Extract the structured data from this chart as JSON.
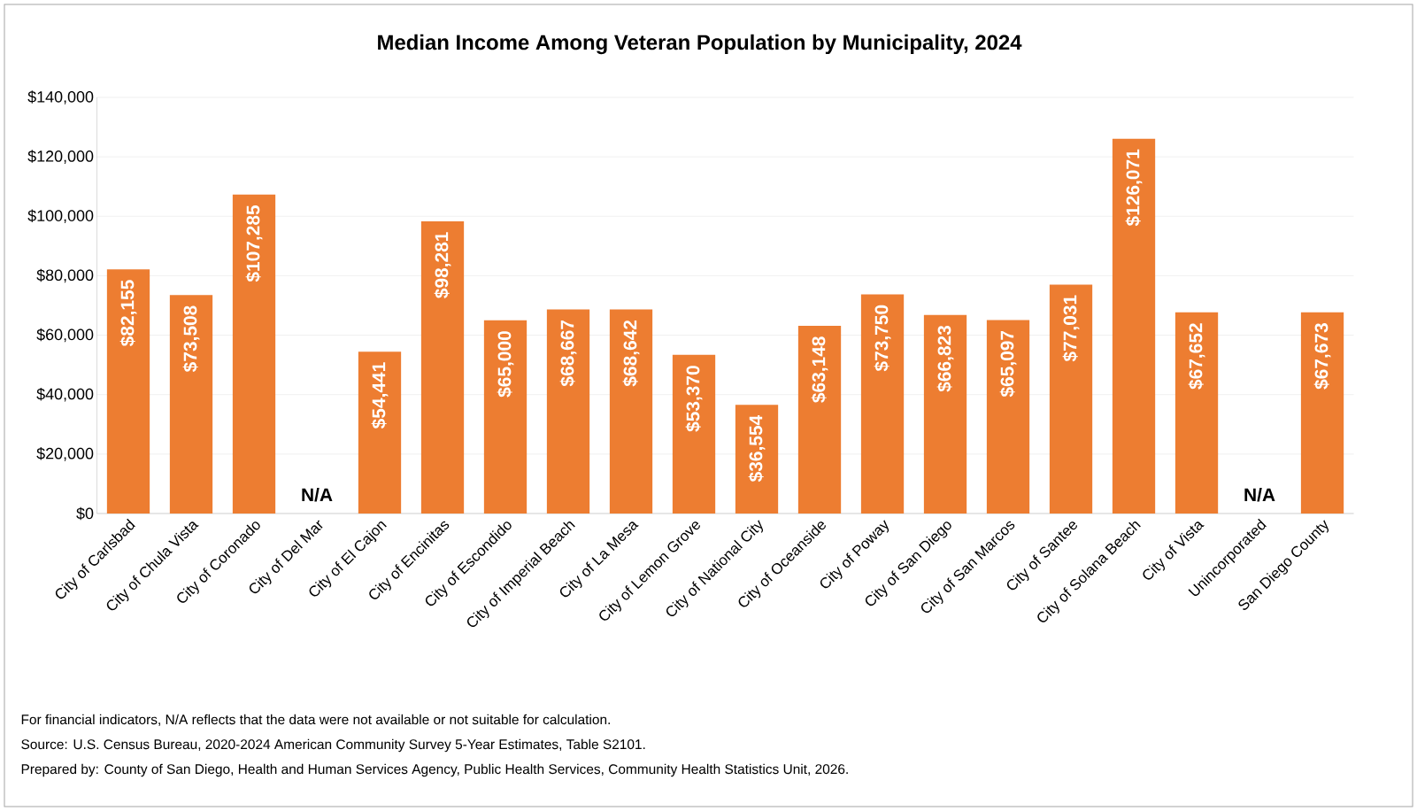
{
  "chart_data": {
    "type": "bar",
    "title": "Median Income Among Veteran Population by Municipality, 2024",
    "categories": [
      "City of Carlsbad",
      "City of Chula Vista",
      "City of Coronado",
      "City of Del Mar",
      "City of El Cajon",
      "City of Encinitas",
      "City of Escondido",
      "City of Imperial Beach",
      "City of La Mesa",
      "City of Lemon Grove",
      "City of National City",
      "City of Oceanside",
      "City of Poway",
      "City of San Diego",
      "City of San Marcos",
      "City of Santee",
      "City of Solana Beach",
      "City of Vista",
      "Unincorporated",
      "San Diego County"
    ],
    "values": [
      82155,
      73508,
      107285,
      null,
      54441,
      98281,
      65000,
      68667,
      68642,
      53370,
      36554,
      63148,
      73750,
      66823,
      65097,
      77031,
      126071,
      67652,
      null,
      67673
    ],
    "value_labels": [
      "$82,155",
      "$73,508",
      "$107,285",
      "N/A",
      "$54,441",
      "$98,281",
      "$65,000",
      "$68,667",
      "$68,642",
      "$53,370",
      "$36,554",
      "$63,148",
      "$73,750",
      "$66,823",
      "$65,097",
      "$77,031",
      "$126,071",
      "$67,652",
      "N/A",
      "$67,673"
    ],
    "color": "#ed7d31",
    "ylim": [
      0,
      140000
    ],
    "yticks": [
      {
        "value": 0,
        "label": "$0"
      },
      {
        "value": 20000,
        "label": "$20,000"
      },
      {
        "value": 40000,
        "label": "$40,000"
      },
      {
        "value": 60000,
        "label": "$60,000"
      },
      {
        "value": 80000,
        "label": "$80,000"
      },
      {
        "value": 100000,
        "label": "$100,000"
      },
      {
        "value": 120000,
        "label": "$120,000"
      },
      {
        "value": 140000,
        "label": "$140,000"
      }
    ],
    "grid": "y",
    "annotations": [
      "For financial indicators, N/A reflects that the data were not available or not suitable for calculation.",
      "Source: U.S. Census Bureau, 2020-2024 American Community Survey 5-Year Estimates, Table S2101.",
      "Prepared by: County of San Diego, Health and Human Services Agency, Public Health Services, Community Health Statistics Unit, 2026."
    ]
  }
}
